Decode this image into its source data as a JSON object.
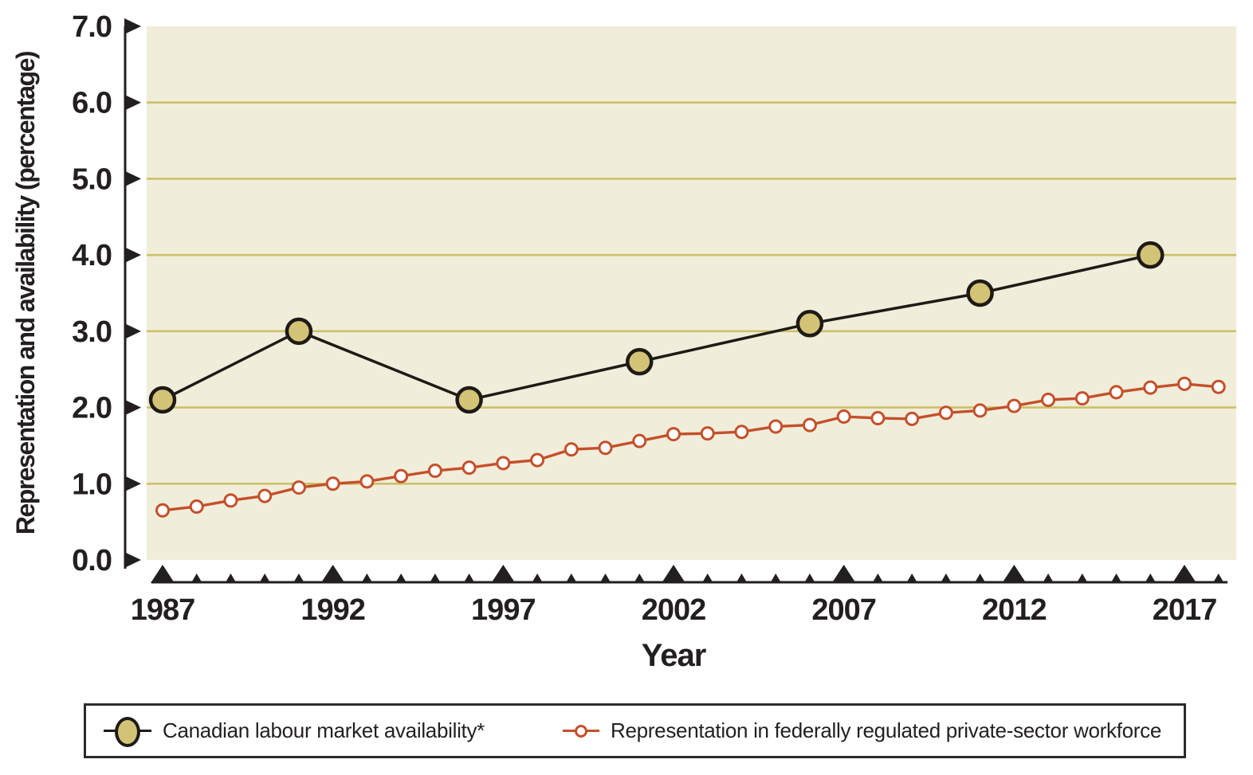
{
  "chart_data": {
    "type": "line",
    "title": "",
    "xlabel": "Year",
    "ylabel": "Representation and availability (percentage)",
    "ylim": [
      0.0,
      7.0
    ],
    "y_tick_labels": [
      "0.0",
      "1.0",
      "2.0",
      "3.0",
      "4.0",
      "5.0",
      "6.0",
      "7.0"
    ],
    "x_tick_years_all": [
      1987,
      1988,
      1989,
      1990,
      1991,
      1992,
      1993,
      1994,
      1995,
      1996,
      1997,
      1998,
      1999,
      2000,
      2001,
      2002,
      2003,
      2004,
      2005,
      2006,
      2007,
      2008,
      2009,
      2010,
      2011,
      2012,
      2013,
      2014,
      2015,
      2016,
      2017,
      2018
    ],
    "x_labeled_ticks": [
      "1987",
      "1992",
      "1997",
      "2002",
      "2007",
      "2012",
      "2017"
    ],
    "grid": "horizontal gridlines at 1.0 through 6.0",
    "legend_position": "bottom",
    "series": [
      {
        "name": "Canadian labour market availability*",
        "marker": "large filled circle",
        "line_color": "#1e1a16",
        "marker_fill": "#d3c376",
        "x": [
          1987,
          1991,
          1996,
          2001,
          2006,
          2011,
          2016
        ],
        "values": [
          2.1,
          3.0,
          2.1,
          2.6,
          3.1,
          3.5,
          4.0
        ]
      },
      {
        "name": "Representation in federally regulated private-sector workforce",
        "marker": "small open circle",
        "line_color": "#c4502a",
        "marker_fill": "#ffffff",
        "x": [
          1987,
          1988,
          1989,
          1990,
          1991,
          1992,
          1993,
          1994,
          1995,
          1996,
          1997,
          1998,
          1999,
          2000,
          2001,
          2002,
          2003,
          2004,
          2005,
          2006,
          2007,
          2008,
          2009,
          2010,
          2011,
          2012,
          2013,
          2014,
          2015,
          2016,
          2017,
          2018
        ],
        "values": [
          0.65,
          0.7,
          0.78,
          0.84,
          0.95,
          1.0,
          1.03,
          1.1,
          1.17,
          1.21,
          1.27,
          1.31,
          1.45,
          1.47,
          1.56,
          1.65,
          1.66,
          1.68,
          1.75,
          1.77,
          1.88,
          1.86,
          1.85,
          1.93,
          1.96,
          2.02,
          2.1,
          2.12,
          2.2,
          2.26,
          2.31,
          2.27
        ]
      }
    ],
    "colors": {
      "plot_background": "#f0edda",
      "gridline": "#cbc168",
      "axis_and_text": "#231f20",
      "availability_fill": "#d3c376",
      "representation_line": "#c4502a"
    }
  }
}
